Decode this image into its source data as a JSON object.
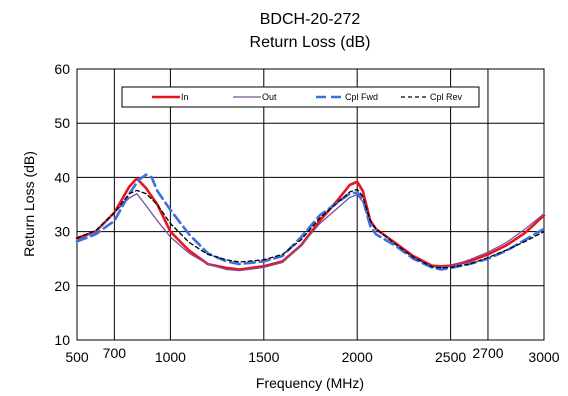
{
  "chart_data": {
    "type": "line",
    "title": "BDCH-20-272",
    "subtitle": "Return Loss (dB)",
    "xlabel": "Frequency (MHz)",
    "ylabel": "Return Loss (dB)",
    "xlim": [
      500,
      3000
    ],
    "ylim": [
      10,
      60
    ],
    "x_ticks": [
      500,
      1000,
      1500,
      2000,
      2500,
      3000
    ],
    "x_tick_labels": [
      "500",
      "1000",
      "1500",
      "2000",
      "2500",
      "3000"
    ],
    "x_extra_ticks": [
      700,
      2700
    ],
    "x_extra_tick_labels": [
      "700",
      "2700"
    ],
    "y_ticks": [
      10,
      20,
      30,
      40,
      50,
      60
    ],
    "y_tick_labels": [
      "10",
      "20",
      "30",
      "40",
      "50",
      "60"
    ],
    "grid": true,
    "legend_position": "top",
    "series": [
      {
        "name": "In",
        "color": "#e8141e",
        "dash": "solid",
        "width": "thick",
        "points": [
          [
            500,
            28.8
          ],
          [
            600,
            30.0
          ],
          [
            700,
            33.5
          ],
          [
            780,
            38.3
          ],
          [
            820,
            39.8
          ],
          [
            870,
            38.0
          ],
          [
            930,
            35.0
          ],
          [
            1000,
            30.0
          ],
          [
            1100,
            26.5
          ],
          [
            1200,
            24.0
          ],
          [
            1300,
            23.3
          ],
          [
            1370,
            23.0
          ],
          [
            1500,
            23.6
          ],
          [
            1600,
            24.5
          ],
          [
            1700,
            27.5
          ],
          [
            1800,
            32.0
          ],
          [
            1900,
            36.0
          ],
          [
            1960,
            38.6
          ],
          [
            2000,
            39.2
          ],
          [
            2030,
            37.5
          ],
          [
            2070,
            32.0
          ],
          [
            2100,
            30.5
          ],
          [
            2200,
            28.0
          ],
          [
            2300,
            25.5
          ],
          [
            2400,
            23.7
          ],
          [
            2450,
            23.6
          ],
          [
            2500,
            23.7
          ],
          [
            2600,
            24.5
          ],
          [
            2700,
            25.8
          ],
          [
            2800,
            27.5
          ],
          [
            2900,
            29.8
          ],
          [
            3000,
            33.0
          ]
        ]
      },
      {
        "name": "Out",
        "color": "#7b4fa0",
        "dash": "solid",
        "width": "thin",
        "points": [
          [
            500,
            28.4
          ],
          [
            600,
            30.0
          ],
          [
            700,
            33.5
          ],
          [
            780,
            36.2
          ],
          [
            820,
            37.0
          ],
          [
            870,
            34.8
          ],
          [
            930,
            32.0
          ],
          [
            1000,
            29.0
          ],
          [
            1100,
            26.0
          ],
          [
            1200,
            24.0
          ],
          [
            1300,
            23.0
          ],
          [
            1370,
            22.8
          ],
          [
            1500,
            23.4
          ],
          [
            1600,
            24.3
          ],
          [
            1700,
            27.5
          ],
          [
            1800,
            31.5
          ],
          [
            1900,
            34.5
          ],
          [
            1960,
            36.3
          ],
          [
            2000,
            36.8
          ],
          [
            2030,
            35.5
          ],
          [
            2070,
            31.5
          ],
          [
            2100,
            30.5
          ],
          [
            2200,
            27.8
          ],
          [
            2300,
            25.2
          ],
          [
            2400,
            23.6
          ],
          [
            2450,
            23.4
          ],
          [
            2500,
            23.6
          ],
          [
            2600,
            24.8
          ],
          [
            2700,
            26.2
          ],
          [
            2800,
            28.0
          ],
          [
            2900,
            30.5
          ],
          [
            3000,
            33.3
          ]
        ]
      },
      {
        "name": "Cpl Fwd",
        "color": "#3d6fe0",
        "dash": "long",
        "width": "thick",
        "points": [
          [
            500,
            28.2
          ],
          [
            600,
            29.5
          ],
          [
            700,
            32.0
          ],
          [
            780,
            37.0
          ],
          [
            830,
            39.5
          ],
          [
            870,
            40.5
          ],
          [
            900,
            40.0
          ],
          [
            930,
            37.5
          ],
          [
            1000,
            34.0
          ],
          [
            1100,
            29.5
          ],
          [
            1200,
            26.0
          ],
          [
            1300,
            24.5
          ],
          [
            1370,
            24.0
          ],
          [
            1500,
            24.5
          ],
          [
            1600,
            25.5
          ],
          [
            1700,
            29.0
          ],
          [
            1800,
            33.0
          ],
          [
            1900,
            35.5
          ],
          [
            1960,
            37.0
          ],
          [
            2000,
            37.2
          ],
          [
            2030,
            36.0
          ],
          [
            2070,
            31.0
          ],
          [
            2100,
            29.5
          ],
          [
            2200,
            27.5
          ],
          [
            2300,
            25.0
          ],
          [
            2400,
            23.4
          ],
          [
            2450,
            23.0
          ],
          [
            2500,
            23.3
          ],
          [
            2600,
            24.0
          ],
          [
            2700,
            25.0
          ],
          [
            2800,
            26.5
          ],
          [
            2900,
            28.5
          ],
          [
            3000,
            30.5
          ]
        ]
      },
      {
        "name": "Cpl Rev",
        "color": "#000000",
        "dash": "short",
        "width": "thin",
        "points": [
          [
            500,
            28.8
          ],
          [
            600,
            30.2
          ],
          [
            700,
            33.5
          ],
          [
            780,
            37.0
          ],
          [
            820,
            37.6
          ],
          [
            870,
            37.0
          ],
          [
            930,
            35.0
          ],
          [
            1000,
            31.5
          ],
          [
            1100,
            28.0
          ],
          [
            1200,
            25.8
          ],
          [
            1300,
            24.8
          ],
          [
            1370,
            24.4
          ],
          [
            1500,
            24.8
          ],
          [
            1600,
            25.8
          ],
          [
            1700,
            28.5
          ],
          [
            1800,
            32.5
          ],
          [
            1900,
            35.5
          ],
          [
            1960,
            37.3
          ],
          [
            2000,
            37.8
          ],
          [
            2030,
            36.5
          ],
          [
            2070,
            32.0
          ],
          [
            2100,
            30.5
          ],
          [
            2200,
            27.8
          ],
          [
            2300,
            25.3
          ],
          [
            2400,
            23.5
          ],
          [
            2450,
            23.3
          ],
          [
            2500,
            23.4
          ],
          [
            2600,
            24.0
          ],
          [
            2700,
            25.2
          ],
          [
            2800,
            26.6
          ],
          [
            2900,
            28.2
          ],
          [
            3000,
            30.0
          ]
        ]
      }
    ]
  }
}
